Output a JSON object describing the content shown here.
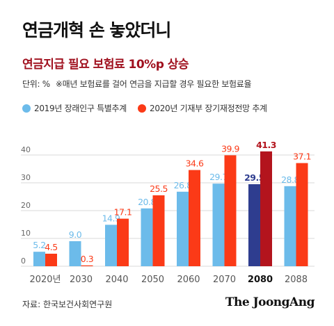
{
  "title": "연금개혁 손 놓았더니",
  "subtitle": "연금지급 필요 보험료 10%p 상승",
  "unit": "단위: %",
  "note": "※매년 보험료를 걸어 연금을 지급할 경우 필요한 보험료율",
  "source": "자료: 한국보건사회연구원",
  "brand": "The JoongAng",
  "colors": {
    "series1": "#6cbbea",
    "series2": "#fb3a17",
    "series1_highlight": "#2e3d8f",
    "series2_highlight": "#b3141d",
    "grid": "#d9d9d9",
    "axis_label": "#555555"
  },
  "chart_data": {
    "type": "bar",
    "title": "연금지급 필요 보험료 10%p 상승",
    "categories": [
      "2020년",
      "2030",
      "2040",
      "2050",
      "2060",
      "2070",
      "2080",
      "2088"
    ],
    "highlight_category": "2080",
    "series": [
      {
        "name": "2019년 장래인구 특별추계",
        "values": [
          5.2,
          9.0,
          14.9,
          20.8,
          26.8,
          29.7,
          29.5,
          28.8
        ]
      },
      {
        "name": "2020년 기재부 장기재정전망 추계",
        "values": [
          4.5,
          0.3,
          17.1,
          25.5,
          34.6,
          39.9,
          41.3,
          37.1
        ]
      }
    ],
    "value_labels": [
      [
        "5.2",
        "9.0",
        "14.9",
        "20.8",
        "26.8",
        "29.7",
        "29.5",
        "28.8"
      ],
      [
        "4.5",
        "0.3",
        "17.1",
        "25.5",
        "34.6",
        "39.9",
        "41.3",
        "37.1"
      ]
    ],
    "y_ticks": [
      "0",
      "10",
      "20",
      "30",
      "40"
    ],
    "ylim": [
      0,
      45
    ],
    "grid": true,
    "legend_position": "top-left"
  }
}
